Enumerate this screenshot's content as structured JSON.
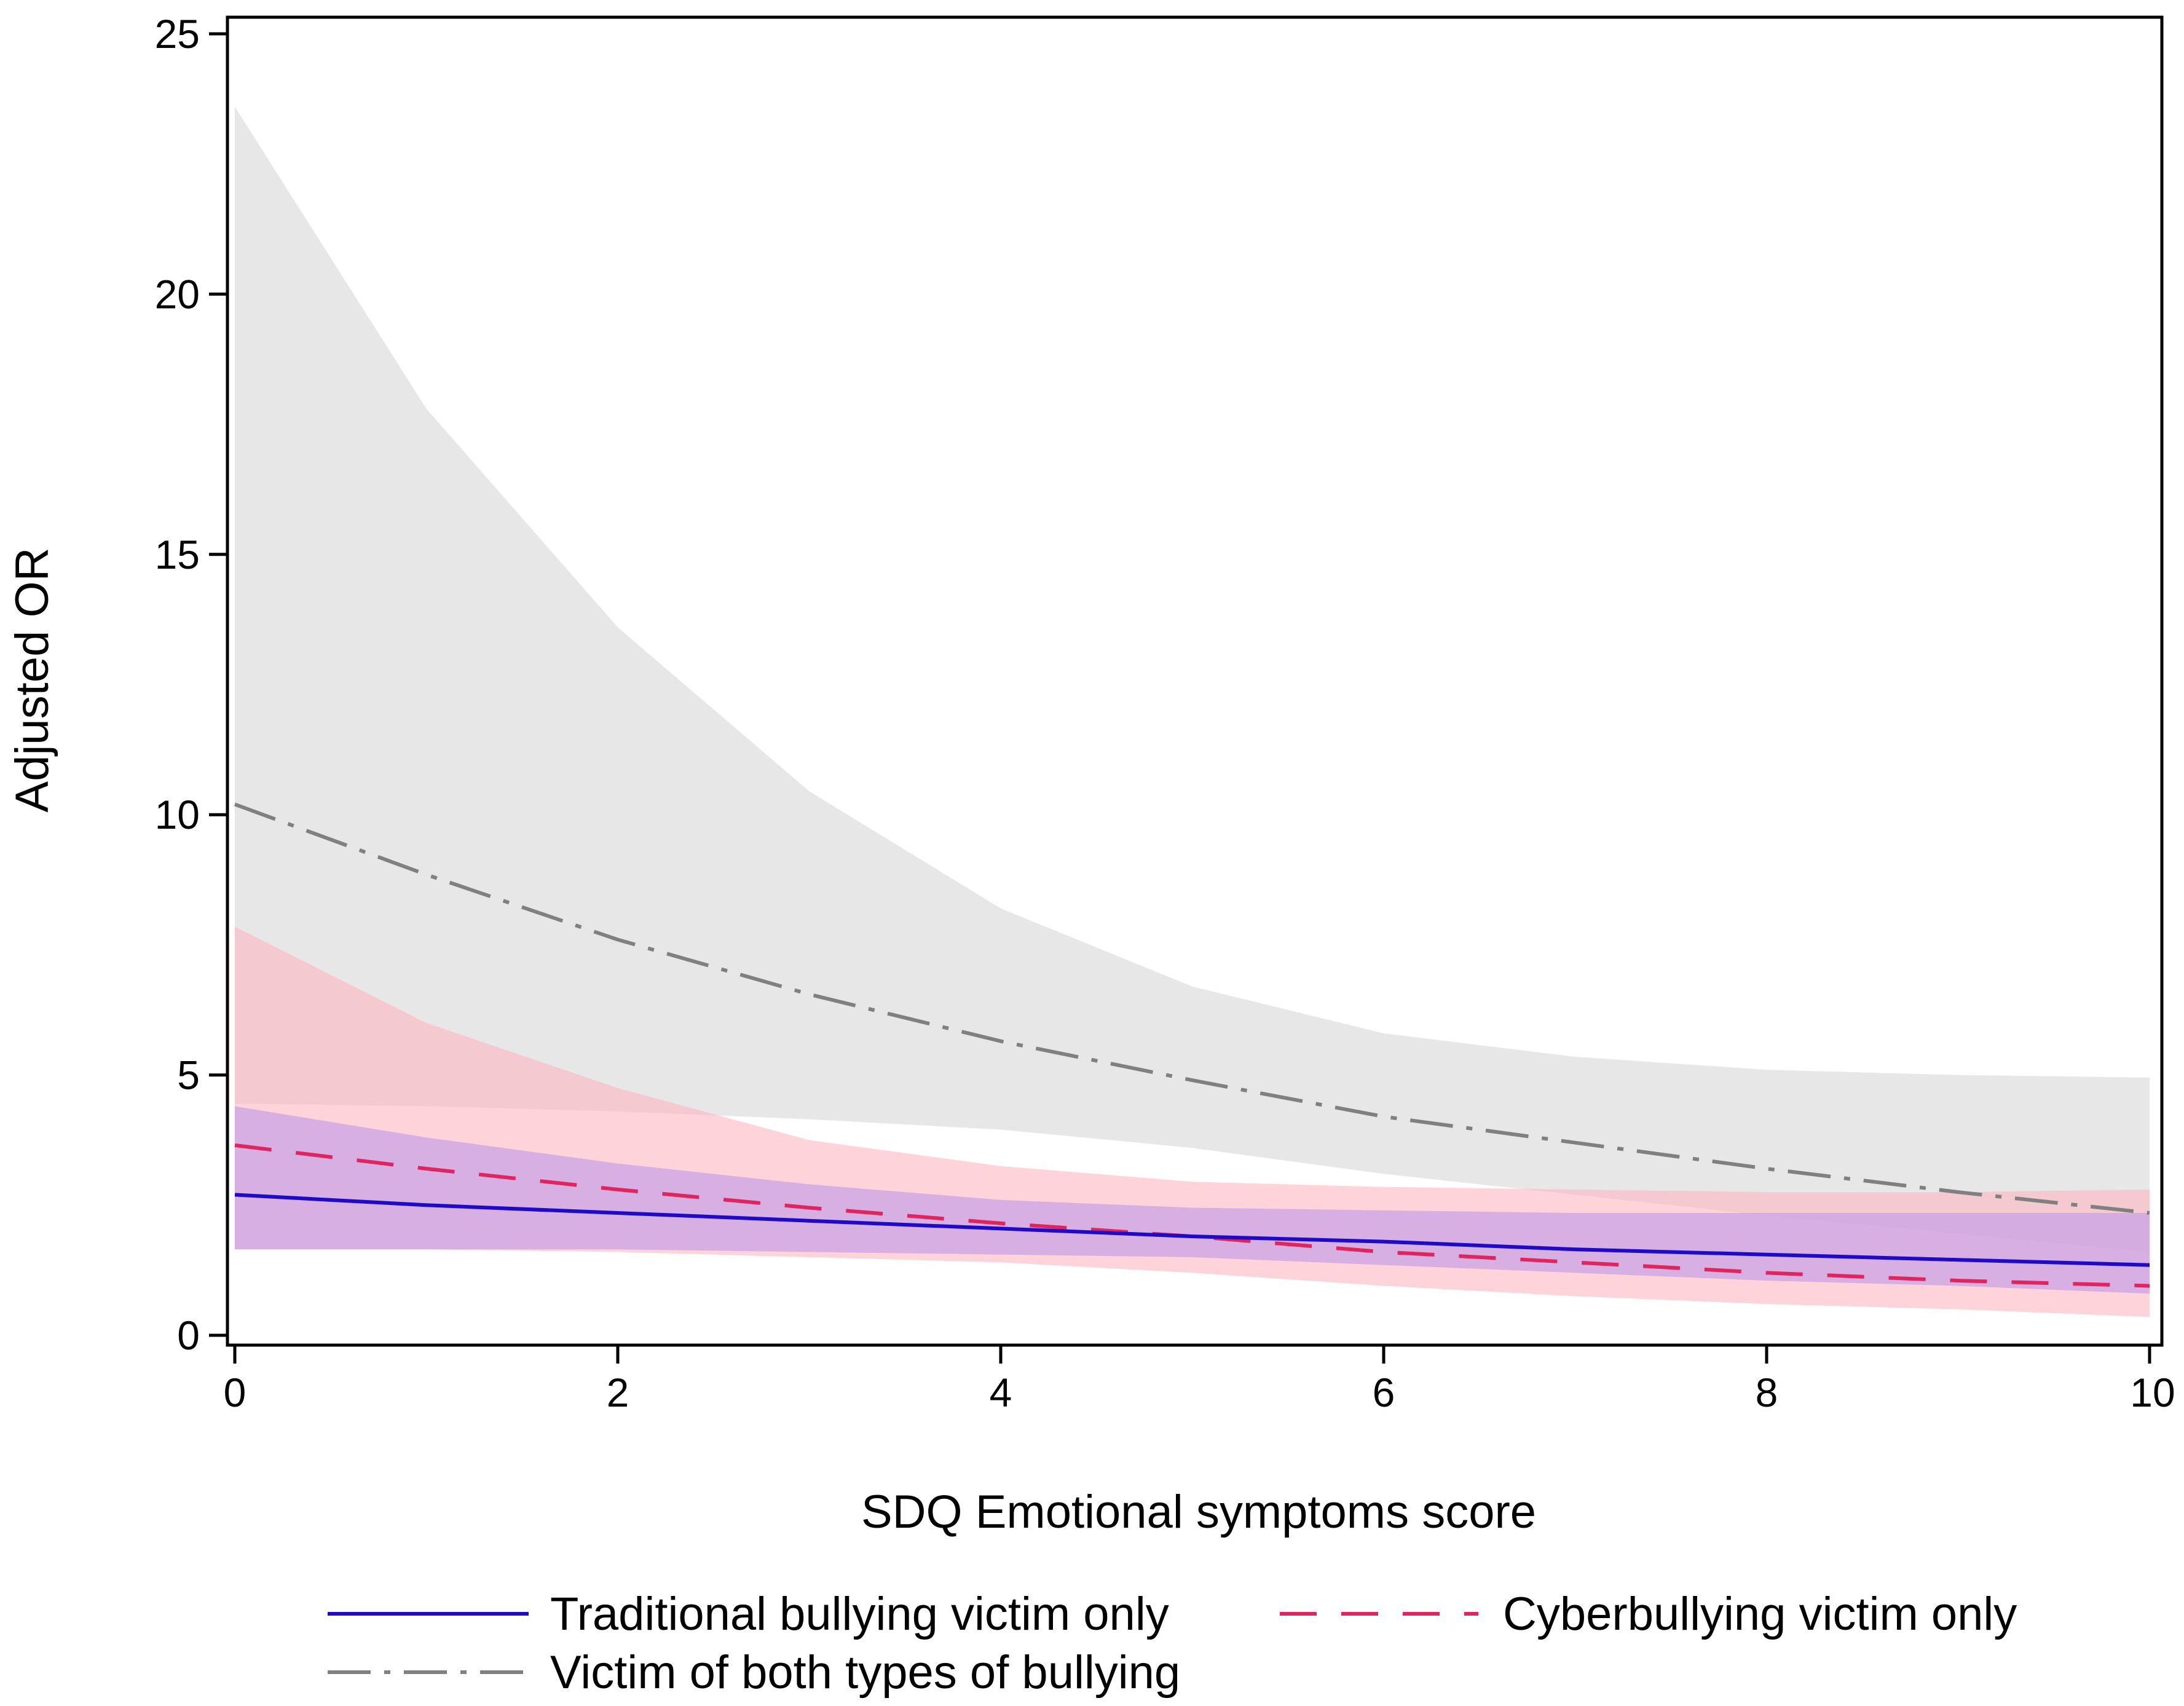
{
  "chart_data": {
    "type": "line",
    "title": "",
    "xlabel": "SDQ Emotional symptoms score",
    "ylabel": "Adjusted OR",
    "xlim": [
      0,
      10
    ],
    "ylim": [
      0,
      25
    ],
    "xticks": [
      0,
      2,
      4,
      6,
      8,
      10
    ],
    "yticks": [
      0,
      5,
      10,
      15,
      20,
      25
    ],
    "x": [
      0,
      1,
      2,
      3,
      4,
      5,
      6,
      7,
      8,
      9,
      10
    ],
    "series": [
      {
        "name": "Victim of both types of bullying",
        "style": "dash-dot",
        "color": "#808080",
        "band_color": "#e6e6e6",
        "values": [
          10.2,
          8.85,
          7.6,
          6.55,
          5.65,
          4.9,
          4.2,
          3.7,
          3.2,
          2.75,
          2.35
        ],
        "lower": [
          4.45,
          4.4,
          4.3,
          4.15,
          3.95,
          3.6,
          3.1,
          2.7,
          2.3,
          1.95,
          1.6
        ],
        "upper": [
          23.6,
          17.8,
          13.6,
          10.45,
          8.2,
          6.7,
          5.8,
          5.35,
          5.1,
          5.0,
          4.95
        ]
      },
      {
        "name": "Cyberbullying victim only",
        "style": "dashed",
        "color": "#e0245e",
        "band_color": "#ffb6c1",
        "values": [
          3.65,
          3.2,
          2.8,
          2.45,
          2.15,
          1.9,
          1.6,
          1.4,
          1.2,
          1.05,
          0.95
        ],
        "lower": [
          1.65,
          1.65,
          1.6,
          1.5,
          1.4,
          1.2,
          0.95,
          0.75,
          0.6,
          0.5,
          0.35
        ],
        "upper": [
          7.85,
          6.0,
          4.75,
          3.75,
          3.25,
          2.95,
          2.85,
          2.8,
          2.75,
          2.75,
          2.8
        ]
      },
      {
        "name": "Traditional bullying victim only",
        "style": "solid",
        "color": "#1f0ac8",
        "band_color": "#c8a0e6",
        "values": [
          2.7,
          2.5,
          2.35,
          2.2,
          2.05,
          1.9,
          1.8,
          1.65,
          1.55,
          1.45,
          1.35
        ],
        "lower": [
          1.65,
          1.65,
          1.65,
          1.6,
          1.55,
          1.5,
          1.35,
          1.2,
          1.05,
          0.95,
          0.8
        ],
        "upper": [
          4.4,
          3.8,
          3.3,
          2.9,
          2.6,
          2.45,
          2.4,
          2.35,
          2.35,
          2.35,
          2.35
        ]
      }
    ],
    "legend": {
      "position": "bottom",
      "entries": [
        "Traditional bullying victim only",
        "Cyberbullying victim only",
        "Victim of both types of bullying"
      ]
    }
  }
}
